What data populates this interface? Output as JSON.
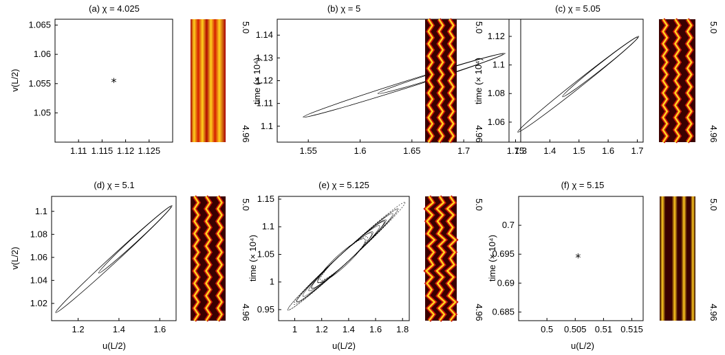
{
  "colors": {
    "axis": "#000000",
    "trace": "#000000",
    "heat_dark": "#3a0000",
    "heat_mid": "#c8140a",
    "heat_bright": "#ffd21e"
  },
  "time_axis": {
    "label": "time (× 10⁴)",
    "ticks": [
      "5.0",
      "4.96"
    ]
  },
  "chart_data": [
    {
      "id": "a",
      "type": "scatter",
      "title": "(a) χ = 4.025",
      "xlabel": "",
      "ylabel": "v(L/2)",
      "xlim": [
        1.105,
        1.13
      ],
      "ylim": [
        1.045,
        1.066
      ],
      "xticks": [
        "1.11",
        "1.115",
        "1.12",
        "1.125"
      ],
      "yticks": [
        "1.05",
        "1.055",
        "1.06",
        "1.065"
      ],
      "points": [
        [
          1.1175,
          1.0553
        ]
      ],
      "marker": "asterisk",
      "space_time": {
        "pattern": "steady stripes",
        "stripes": 3
      }
    },
    {
      "id": "b",
      "type": "line",
      "title": "(b) χ = 5",
      "xlabel": "",
      "ylabel": "",
      "xlim": [
        1.52,
        1.755
      ],
      "ylim": [
        1.093,
        1.147
      ],
      "xticks": [
        "1.55",
        "1.6",
        "1.65",
        "1.7",
        "1.75"
      ],
      "yticks": [
        "1.1",
        "1.11",
        "1.12",
        "1.13",
        "1.14"
      ],
      "orbit": {
        "lower_left": [
          1.545,
          1.104
        ],
        "upper_right": [
          1.74,
          1.132
        ],
        "loops": 2
      },
      "space_time": {
        "pattern": "oscillating zigzag",
        "stripes": 3
      }
    },
    {
      "id": "c",
      "type": "line",
      "title": "(c) χ = 5.05",
      "xlabel": "",
      "ylabel": "",
      "xlim": [
        1.26,
        1.72
      ],
      "ylim": [
        1.046,
        1.132
      ],
      "xticks": [
        "1.3",
        "1.4",
        "1.5",
        "1.6",
        "1.7"
      ],
      "yticks": [
        "1.06",
        "1.08",
        "1.1",
        "1.12"
      ],
      "orbit": {
        "lower_left": [
          1.29,
          1.053
        ],
        "upper_right": [
          1.705,
          1.12
        ],
        "loops": 2
      },
      "space_time": {
        "pattern": "oscillating zigzag",
        "stripes": 3
      }
    },
    {
      "id": "d",
      "type": "line",
      "title": "(d) χ = 5.1",
      "xlabel": "u(L/2)",
      "ylabel": "v(L/2)",
      "xlim": [
        1.07,
        1.68
      ],
      "ylim": [
        1.005,
        1.113
      ],
      "xticks": [
        "1.2",
        "1.4",
        "1.6"
      ],
      "yticks": [
        "1.02",
        "1.04",
        "1.06",
        "1.08",
        "1.1"
      ],
      "orbit": {
        "lower_left": [
          1.09,
          1.012
        ],
        "upper_right": [
          1.66,
          1.105
        ],
        "loops": 2
      },
      "space_time": {
        "pattern": "oscillating zigzag",
        "stripes": 3
      }
    },
    {
      "id": "e",
      "type": "line",
      "title": "(e) χ = 5.125",
      "xlabel": "u(L/2)",
      "ylabel": "",
      "xlim": [
        0.88,
        1.85
      ],
      "ylim": [
        0.93,
        1.155
      ],
      "xticks": [
        "1",
        "1.2",
        "1.4",
        "1.6",
        "1.8"
      ],
      "yticks": [
        "0.95",
        "1",
        "1.05",
        "1.1",
        "1.15"
      ],
      "orbit": {
        "lower_left": [
          0.93,
          0.945
        ],
        "upper_right": [
          1.8,
          1.14
        ],
        "loops": 12,
        "chaotic": true
      },
      "space_time": {
        "pattern": "irregular oscillation",
        "stripes": 3
      }
    },
    {
      "id": "f",
      "type": "scatter",
      "title": "(f) χ = 5.15",
      "xlabel": "u(L/2)",
      "ylabel": "",
      "xlim": [
        0.495,
        0.517
      ],
      "ylim": [
        0.6835,
        0.705
      ],
      "xticks": [
        "0.5",
        "0.505",
        "0.51",
        "0.515"
      ],
      "yticks": [
        "0.685",
        "0.69",
        "0.695",
        "0.7"
      ],
      "points": [
        [
          0.5055,
          0.6945
        ]
      ],
      "marker": "asterisk",
      "space_time": {
        "pattern": "steady stripes",
        "stripes": 4
      }
    }
  ]
}
